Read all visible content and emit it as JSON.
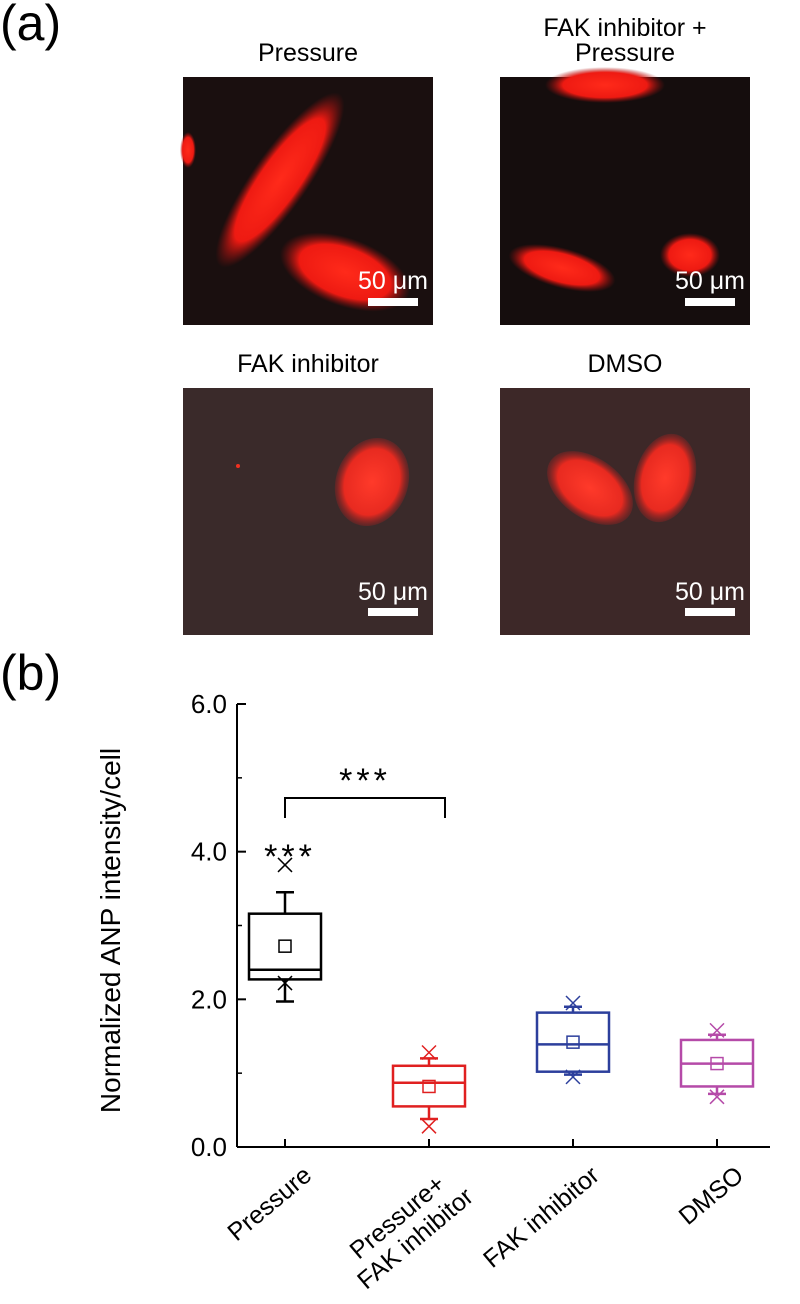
{
  "panel_a": {
    "label": "(a)",
    "images": [
      {
        "title": [
          "Pressure"
        ],
        "scale": "50 μm"
      },
      {
        "title": [
          "FAK inhibitor +",
          "Pressure"
        ],
        "scale": "50 μm"
      },
      {
        "title": [
          "FAK inhibitor"
        ],
        "scale": "50 μm"
      },
      {
        "title": [
          "DMSO"
        ],
        "scale": "50 μm"
      }
    ]
  },
  "chart_data": {
    "type": "box",
    "panel_label": "(b)",
    "ylabel": "Normalized ANP intensity/cell",
    "categories": [
      "Pressure",
      "Pressure+\nFAK inhibitor",
      "FAK inhibitor",
      "DMSO"
    ],
    "ylim": [
      0,
      6
    ],
    "yticks": [
      {
        "value": 0,
        "label": "0.0"
      },
      {
        "value": 2,
        "label": "2.0"
      },
      {
        "value": 4,
        "label": "4.0"
      },
      {
        "value": 6,
        "label": "6.0"
      }
    ],
    "yminorticks": [
      1,
      3,
      5
    ],
    "colors": [
      "#000000",
      "#e02020",
      "#2c3f9c",
      "#b54aa8"
    ],
    "boxes": [
      {
        "whislo": 1.97,
        "q1": 2.27,
        "med": 2.4,
        "mean": 2.72,
        "q3": 3.16,
        "whishi": 3.45,
        "min": 2.22,
        "max": 3.82
      },
      {
        "whislo": 0.38,
        "q1": 0.55,
        "med": 0.87,
        "mean": 0.82,
        "q3": 1.1,
        "whishi": 1.2,
        "min": 0.28,
        "max": 1.28
      },
      {
        "whislo": 0.98,
        "q1": 1.02,
        "med": 1.39,
        "mean": 1.42,
        "q3": 1.82,
        "whishi": 1.9,
        "min": 0.95,
        "max": 1.95
      },
      {
        "whislo": 0.72,
        "q1": 0.82,
        "med": 1.13,
        "mean": 1.13,
        "q3": 1.45,
        "whishi": 1.52,
        "min": 0.68,
        "max": 1.58
      }
    ],
    "annotations": {
      "over_pressure": "***",
      "bracket": "***"
    }
  }
}
